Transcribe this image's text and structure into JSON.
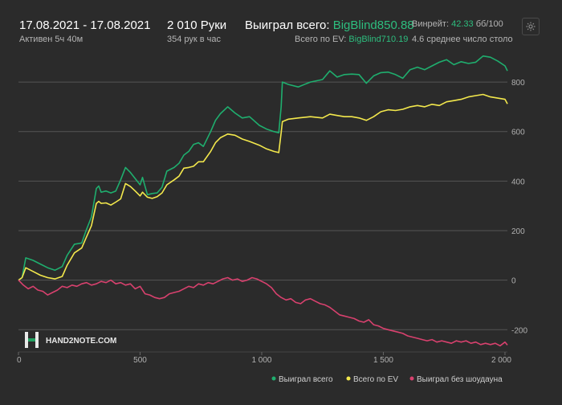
{
  "header": {
    "date_range": "17.08.2021 - 17.08.2021",
    "active_time": "Активен 5ч 40м",
    "hands": "2 010 Руки",
    "hands_per_hour": "354 рук в час",
    "won_total_label": "Выиграл всего:",
    "won_total_value": "BigBlind850.88",
    "ev_total_label": "Всего по EV:",
    "ev_total_value": "BigBlind710.19",
    "winrate_label": "Винрейт:",
    "winrate_value": "42.33",
    "winrate_unit": "бб/100",
    "avg_table": "4.6 среднее число столо"
  },
  "icons": {
    "settings": "gear-icon",
    "logo": "hand2note-logo"
  },
  "logo_text": "HAND2NOTE.COM",
  "colors": {
    "background": "#2b2b2b",
    "won_total": "#1fae6e",
    "ev": "#f3e84c",
    "no_showdown": "#d8416e",
    "grid": "#555555",
    "accent_green": "#2dbd7e"
  },
  "chart_data": {
    "type": "line",
    "x_ticks": [
      "0",
      "500",
      "1 000",
      "1 500",
      "2 000"
    ],
    "y_ticks": [
      "800",
      "600",
      "400",
      "200",
      "0",
      "-200"
    ],
    "xlim": [
      0,
      2010
    ],
    "ylim": [
      -290,
      930
    ],
    "grid": "horizontal",
    "legend_position": "bottom-right",
    "series": [
      {
        "name": "Выиграл всего",
        "color": "#1fae6e",
        "points": [
          [
            0,
            0
          ],
          [
            15,
            10
          ],
          [
            30,
            90
          ],
          [
            60,
            80
          ],
          [
            90,
            65
          ],
          [
            120,
            50
          ],
          [
            150,
            40
          ],
          [
            180,
            55
          ],
          [
            200,
            100
          ],
          [
            230,
            145
          ],
          [
            260,
            150
          ],
          [
            280,
            205
          ],
          [
            300,
            255
          ],
          [
            320,
            370
          ],
          [
            330,
            380
          ],
          [
            340,
            355
          ],
          [
            360,
            360
          ],
          [
            380,
            352
          ],
          [
            400,
            360
          ],
          [
            420,
            405
          ],
          [
            440,
            455
          ],
          [
            460,
            435
          ],
          [
            480,
            410
          ],
          [
            500,
            385
          ],
          [
            510,
            415
          ],
          [
            530,
            345
          ],
          [
            550,
            350
          ],
          [
            570,
            352
          ],
          [
            590,
            375
          ],
          [
            610,
            440
          ],
          [
            640,
            455
          ],
          [
            660,
            472
          ],
          [
            680,
            505
          ],
          [
            700,
            520
          ],
          [
            720,
            548
          ],
          [
            740,
            555
          ],
          [
            760,
            540
          ],
          [
            790,
            600
          ],
          [
            810,
            645
          ],
          [
            830,
            672
          ],
          [
            860,
            700
          ],
          [
            890,
            675
          ],
          [
            920,
            655
          ],
          [
            950,
            660
          ],
          [
            990,
            625
          ],
          [
            1020,
            610
          ],
          [
            1050,
            600
          ],
          [
            1070,
            595
          ],
          [
            1080,
            700
          ],
          [
            1085,
            800
          ],
          [
            1110,
            790
          ],
          [
            1150,
            780
          ],
          [
            1200,
            800
          ],
          [
            1250,
            810
          ],
          [
            1280,
            845
          ],
          [
            1310,
            820
          ],
          [
            1340,
            830
          ],
          [
            1370,
            832
          ],
          [
            1400,
            830
          ],
          [
            1430,
            795
          ],
          [
            1460,
            825
          ],
          [
            1490,
            838
          ],
          [
            1520,
            840
          ],
          [
            1550,
            830
          ],
          [
            1580,
            815
          ],
          [
            1610,
            850
          ],
          [
            1640,
            860
          ],
          [
            1670,
            850
          ],
          [
            1700,
            865
          ],
          [
            1730,
            880
          ],
          [
            1760,
            890
          ],
          [
            1790,
            870
          ],
          [
            1820,
            882
          ],
          [
            1850,
            875
          ],
          [
            1880,
            880
          ],
          [
            1910,
            905
          ],
          [
            1940,
            900
          ],
          [
            1970,
            885
          ],
          [
            2000,
            865
          ],
          [
            2010,
            845
          ]
        ]
      },
      {
        "name": "Всего по EV",
        "color": "#f3e84c",
        "points": [
          [
            0,
            0
          ],
          [
            15,
            10
          ],
          [
            30,
            50
          ],
          [
            60,
            35
          ],
          [
            90,
            20
          ],
          [
            120,
            10
          ],
          [
            150,
            5
          ],
          [
            180,
            15
          ],
          [
            200,
            60
          ],
          [
            230,
            110
          ],
          [
            260,
            130
          ],
          [
            280,
            175
          ],
          [
            300,
            220
          ],
          [
            320,
            310
          ],
          [
            330,
            318
          ],
          [
            340,
            310
          ],
          [
            360,
            312
          ],
          [
            380,
            303
          ],
          [
            400,
            315
          ],
          [
            420,
            328
          ],
          [
            440,
            390
          ],
          [
            460,
            378
          ],
          [
            480,
            360
          ],
          [
            500,
            340
          ],
          [
            510,
            355
          ],
          [
            530,
            335
          ],
          [
            550,
            330
          ],
          [
            570,
            337
          ],
          [
            590,
            352
          ],
          [
            610,
            385
          ],
          [
            640,
            405
          ],
          [
            660,
            420
          ],
          [
            680,
            452
          ],
          [
            700,
            455
          ],
          [
            720,
            460
          ],
          [
            740,
            478
          ],
          [
            760,
            478
          ],
          [
            790,
            520
          ],
          [
            810,
            555
          ],
          [
            830,
            575
          ],
          [
            860,
            590
          ],
          [
            890,
            585
          ],
          [
            920,
            570
          ],
          [
            950,
            560
          ],
          [
            990,
            545
          ],
          [
            1020,
            530
          ],
          [
            1050,
            520
          ],
          [
            1070,
            515
          ],
          [
            1080,
            595
          ],
          [
            1085,
            640
          ],
          [
            1110,
            650
          ],
          [
            1150,
            655
          ],
          [
            1200,
            660
          ],
          [
            1250,
            655
          ],
          [
            1280,
            670
          ],
          [
            1310,
            665
          ],
          [
            1340,
            660
          ],
          [
            1370,
            660
          ],
          [
            1400,
            655
          ],
          [
            1430,
            645
          ],
          [
            1460,
            660
          ],
          [
            1490,
            680
          ],
          [
            1520,
            688
          ],
          [
            1550,
            685
          ],
          [
            1580,
            690
          ],
          [
            1610,
            700
          ],
          [
            1640,
            705
          ],
          [
            1670,
            700
          ],
          [
            1700,
            710
          ],
          [
            1730,
            705
          ],
          [
            1760,
            720
          ],
          [
            1790,
            725
          ],
          [
            1820,
            730
          ],
          [
            1850,
            740
          ],
          [
            1880,
            745
          ],
          [
            1910,
            750
          ],
          [
            1940,
            740
          ],
          [
            1970,
            735
          ],
          [
            2000,
            730
          ],
          [
            2010,
            712
          ]
        ]
      },
      {
        "name": "Выиграл без шоудауна",
        "color": "#d8416e",
        "points": [
          [
            0,
            0
          ],
          [
            20,
            -20
          ],
          [
            40,
            -35
          ],
          [
            60,
            -25
          ],
          [
            80,
            -40
          ],
          [
            100,
            -45
          ],
          [
            120,
            -60
          ],
          [
            140,
            -50
          ],
          [
            160,
            -40
          ],
          [
            180,
            -25
          ],
          [
            200,
            -30
          ],
          [
            220,
            -20
          ],
          [
            240,
            -25
          ],
          [
            260,
            -15
          ],
          [
            280,
            -10
          ],
          [
            300,
            -20
          ],
          [
            320,
            -15
          ],
          [
            340,
            -5
          ],
          [
            360,
            -10
          ],
          [
            380,
            0
          ],
          [
            400,
            -15
          ],
          [
            420,
            -10
          ],
          [
            440,
            -20
          ],
          [
            460,
            -15
          ],
          [
            480,
            -35
          ],
          [
            500,
            -25
          ],
          [
            520,
            -55
          ],
          [
            540,
            -60
          ],
          [
            560,
            -70
          ],
          [
            580,
            -75
          ],
          [
            600,
            -70
          ],
          [
            620,
            -55
          ],
          [
            640,
            -50
          ],
          [
            660,
            -45
          ],
          [
            680,
            -35
          ],
          [
            700,
            -25
          ],
          [
            720,
            -30
          ],
          [
            740,
            -15
          ],
          [
            760,
            -20
          ],
          [
            780,
            -10
          ],
          [
            800,
            -15
          ],
          [
            820,
            -5
          ],
          [
            840,
            5
          ],
          [
            860,
            10
          ],
          [
            880,
            0
          ],
          [
            900,
            5
          ],
          [
            920,
            -5
          ],
          [
            940,
            0
          ],
          [
            960,
            10
          ],
          [
            980,
            5
          ],
          [
            1000,
            -5
          ],
          [
            1020,
            -15
          ],
          [
            1040,
            -30
          ],
          [
            1060,
            -55
          ],
          [
            1080,
            -70
          ],
          [
            1100,
            -80
          ],
          [
            1120,
            -75
          ],
          [
            1140,
            -90
          ],
          [
            1160,
            -95
          ],
          [
            1180,
            -80
          ],
          [
            1200,
            -75
          ],
          [
            1220,
            -85
          ],
          [
            1240,
            -95
          ],
          [
            1260,
            -100
          ],
          [
            1280,
            -110
          ],
          [
            1300,
            -125
          ],
          [
            1320,
            -140
          ],
          [
            1340,
            -145
          ],
          [
            1360,
            -150
          ],
          [
            1380,
            -155
          ],
          [
            1400,
            -165
          ],
          [
            1420,
            -170
          ],
          [
            1440,
            -160
          ],
          [
            1460,
            -180
          ],
          [
            1480,
            -185
          ],
          [
            1500,
            -195
          ],
          [
            1520,
            -200
          ],
          [
            1540,
            -205
          ],
          [
            1560,
            -210
          ],
          [
            1580,
            -215
          ],
          [
            1600,
            -225
          ],
          [
            1620,
            -230
          ],
          [
            1640,
            -235
          ],
          [
            1660,
            -240
          ],
          [
            1680,
            -245
          ],
          [
            1700,
            -240
          ],
          [
            1720,
            -250
          ],
          [
            1740,
            -245
          ],
          [
            1760,
            -250
          ],
          [
            1780,
            -255
          ],
          [
            1800,
            -245
          ],
          [
            1820,
            -250
          ],
          [
            1840,
            -245
          ],
          [
            1860,
            -255
          ],
          [
            1880,
            -250
          ],
          [
            1900,
            -260
          ],
          [
            1920,
            -255
          ],
          [
            1940,
            -260
          ],
          [
            1960,
            -255
          ],
          [
            1980,
            -265
          ],
          [
            2000,
            -250
          ],
          [
            2010,
            -262
          ]
        ]
      }
    ]
  }
}
